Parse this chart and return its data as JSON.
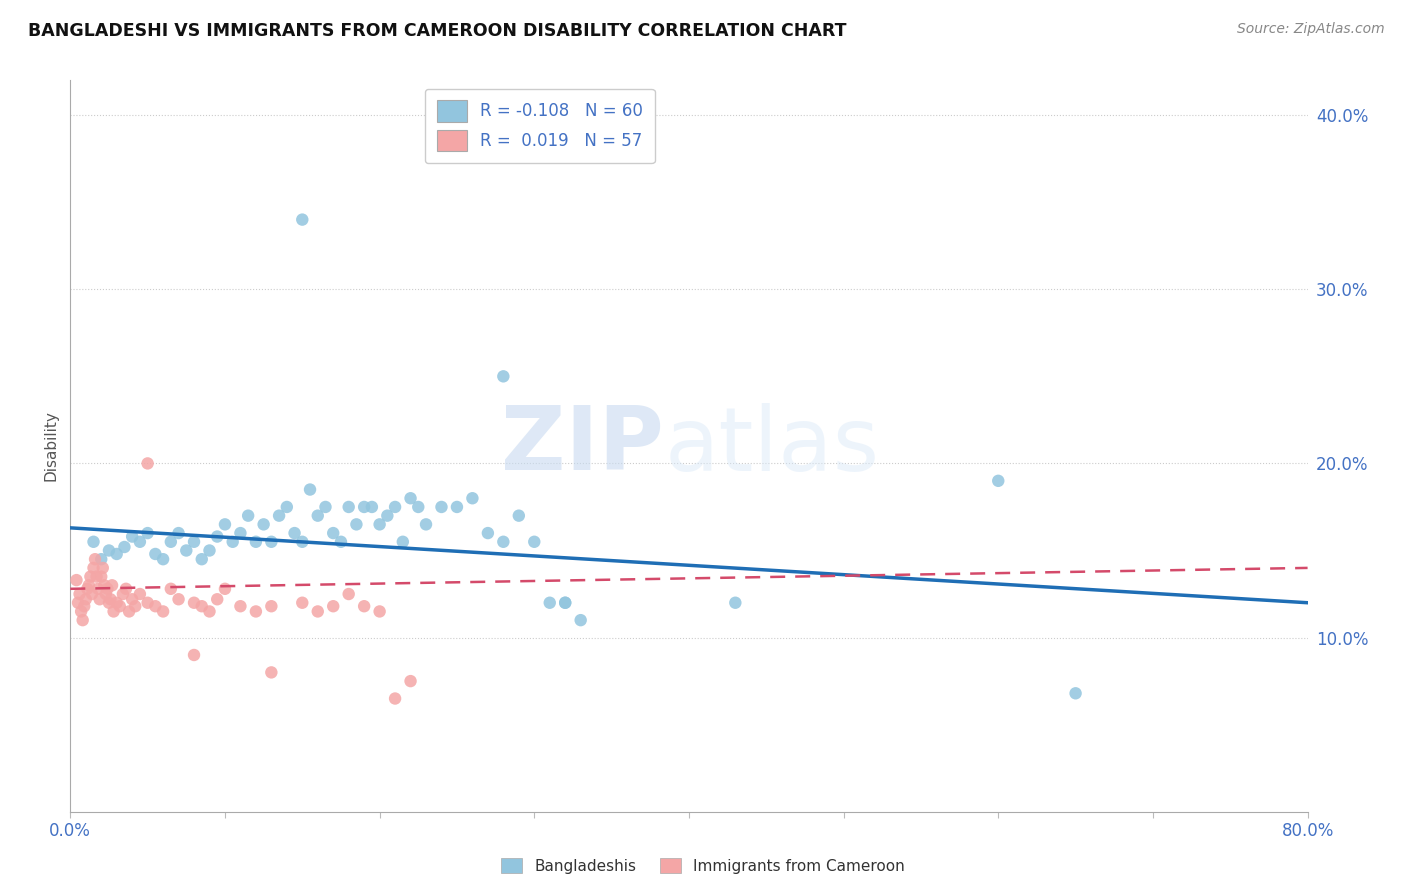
{
  "title": "BANGLADESHI VS IMMIGRANTS FROM CAMEROON DISABILITY CORRELATION CHART",
  "source": "Source: ZipAtlas.com",
  "ylabel": "Disability",
  "xlim": [
    0.0,
    0.8
  ],
  "ylim": [
    0.0,
    0.42
  ],
  "yticks": [
    0.1,
    0.2,
    0.3,
    0.4
  ],
  "ytick_labels": [
    "10.0%",
    "20.0%",
    "30.0%",
    "40.0%"
  ],
  "xtick_show": [
    0.0,
    0.8
  ],
  "xtick_labels": [
    "0.0%",
    "80.0%"
  ],
  "legend_label1": "Bangladeshis",
  "legend_label2": "Immigrants from Cameroon",
  "R1": "-0.108",
  "N1": "60",
  "R2": "0.019",
  "N2": "57",
  "blue_color": "#92c5de",
  "pink_color": "#f4a6a6",
  "line_blue": "#1f6eb5",
  "line_pink": "#d44a6a",
  "background": "#ffffff",
  "watermark_zip": "ZIP",
  "watermark_atlas": "atlas",
  "blue_scatter_x": [
    0.015,
    0.02,
    0.025,
    0.03,
    0.035,
    0.04,
    0.045,
    0.05,
    0.055,
    0.06,
    0.065,
    0.07,
    0.075,
    0.08,
    0.085,
    0.09,
    0.095,
    0.1,
    0.105,
    0.11,
    0.115,
    0.12,
    0.125,
    0.13,
    0.135,
    0.14,
    0.145,
    0.15,
    0.155,
    0.16,
    0.165,
    0.17,
    0.175,
    0.18,
    0.185,
    0.19,
    0.195,
    0.2,
    0.205,
    0.21,
    0.215,
    0.22,
    0.225,
    0.23,
    0.24,
    0.25,
    0.26,
    0.27,
    0.28,
    0.29,
    0.3,
    0.31,
    0.32,
    0.33,
    0.43,
    0.6,
    0.65,
    0.15,
    0.28,
    0.32
  ],
  "blue_scatter_y": [
    0.155,
    0.145,
    0.15,
    0.148,
    0.152,
    0.158,
    0.155,
    0.16,
    0.148,
    0.145,
    0.155,
    0.16,
    0.15,
    0.155,
    0.145,
    0.15,
    0.158,
    0.165,
    0.155,
    0.16,
    0.17,
    0.155,
    0.165,
    0.155,
    0.17,
    0.175,
    0.16,
    0.155,
    0.185,
    0.17,
    0.175,
    0.16,
    0.155,
    0.175,
    0.165,
    0.175,
    0.175,
    0.165,
    0.17,
    0.175,
    0.155,
    0.18,
    0.175,
    0.165,
    0.175,
    0.175,
    0.18,
    0.16,
    0.155,
    0.17,
    0.155,
    0.12,
    0.12,
    0.11,
    0.12,
    0.19,
    0.068,
    0.34,
    0.25,
    0.12
  ],
  "pink_scatter_x": [
    0.004,
    0.005,
    0.006,
    0.007,
    0.008,
    0.009,
    0.01,
    0.011,
    0.012,
    0.013,
    0.014,
    0.015,
    0.016,
    0.017,
    0.018,
    0.019,
    0.02,
    0.021,
    0.022,
    0.023,
    0.024,
    0.025,
    0.026,
    0.027,
    0.028,
    0.03,
    0.032,
    0.034,
    0.036,
    0.038,
    0.04,
    0.042,
    0.045,
    0.05,
    0.055,
    0.06,
    0.065,
    0.07,
    0.08,
    0.085,
    0.09,
    0.095,
    0.1,
    0.11,
    0.12,
    0.13,
    0.15,
    0.16,
    0.17,
    0.18,
    0.19,
    0.2,
    0.21,
    0.22,
    0.05,
    0.08,
    0.13
  ],
  "pink_scatter_y": [
    0.133,
    0.12,
    0.125,
    0.115,
    0.11,
    0.118,
    0.122,
    0.128,
    0.13,
    0.135,
    0.125,
    0.14,
    0.145,
    0.135,
    0.128,
    0.122,
    0.135,
    0.14,
    0.13,
    0.125,
    0.128,
    0.12,
    0.122,
    0.13,
    0.115,
    0.12,
    0.118,
    0.125,
    0.128,
    0.115,
    0.122,
    0.118,
    0.125,
    0.12,
    0.118,
    0.115,
    0.128,
    0.122,
    0.12,
    0.118,
    0.115,
    0.122,
    0.128,
    0.118,
    0.115,
    0.118,
    0.12,
    0.115,
    0.118,
    0.125,
    0.118,
    0.115,
    0.065,
    0.075,
    0.2,
    0.09,
    0.08
  ],
  "blue_line_x": [
    0.0,
    0.8
  ],
  "blue_line_y": [
    0.163,
    0.12
  ],
  "pink_line_x": [
    0.0,
    0.8
  ],
  "pink_line_y": [
    0.128,
    0.14
  ]
}
